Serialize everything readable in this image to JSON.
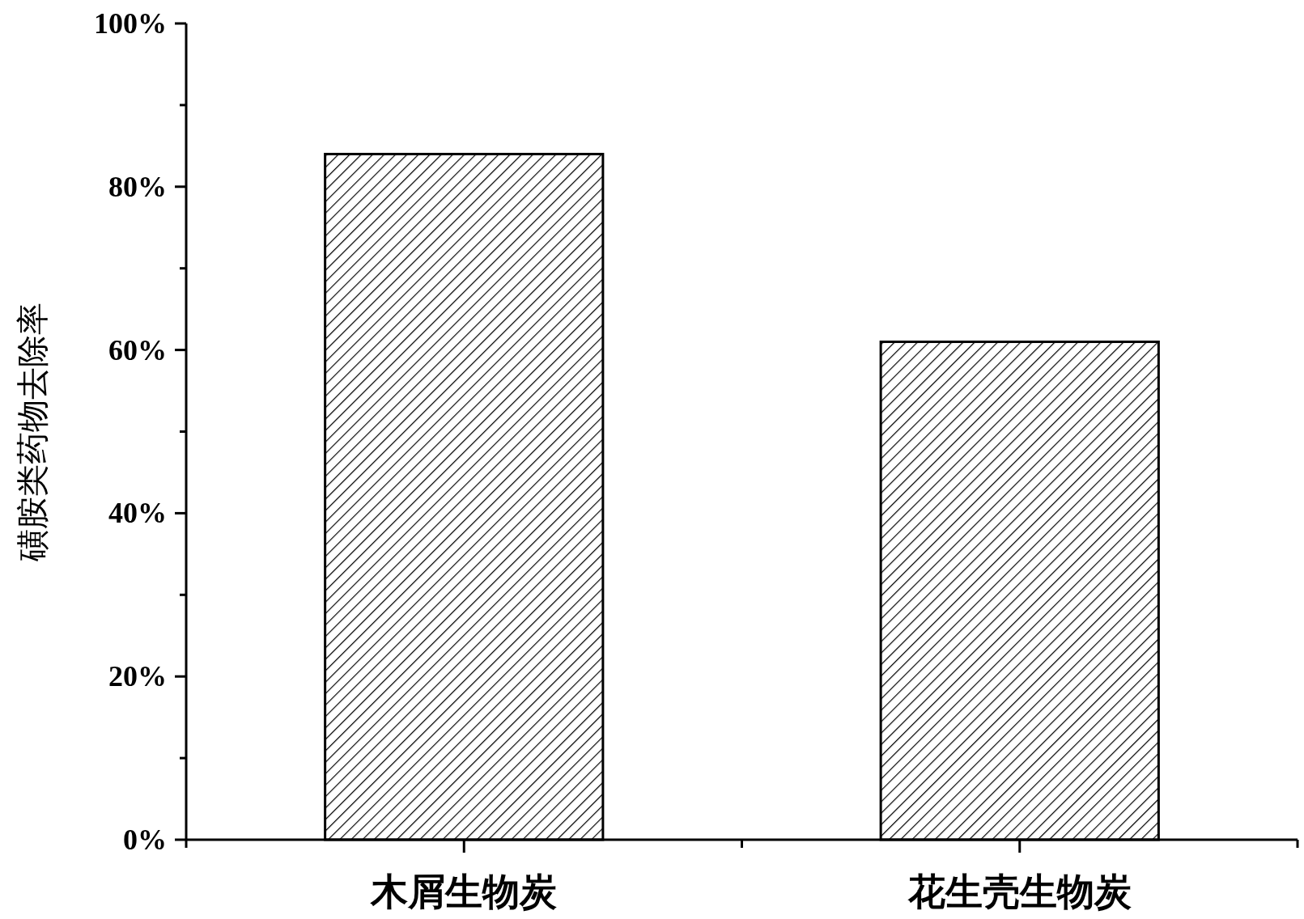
{
  "chart_data": {
    "type": "bar",
    "ylabel": "磺胺类药物去除率",
    "categories": [
      "木屑生物炭",
      "花生壳生物炭"
    ],
    "series": [
      {
        "color": "#000000",
        "values": [
          84,
          61
        ]
      }
    ],
    "ylim": [
      0,
      100
    ],
    "yticks": [
      {
        "value": 0,
        "label": "0%"
      },
      {
        "value": 10,
        "label": null
      },
      {
        "value": 20,
        "label": "20%"
      },
      {
        "value": 30,
        "label": null
      },
      {
        "value": 40,
        "label": "40%"
      },
      {
        "value": 50,
        "label": null
      },
      {
        "value": 60,
        "label": "60%"
      },
      {
        "value": 70,
        "label": null
      },
      {
        "value": 80,
        "label": "80%"
      },
      {
        "value": 90,
        "label": null
      },
      {
        "value": 100,
        "label": "100%"
      }
    ],
    "grid": false
  }
}
